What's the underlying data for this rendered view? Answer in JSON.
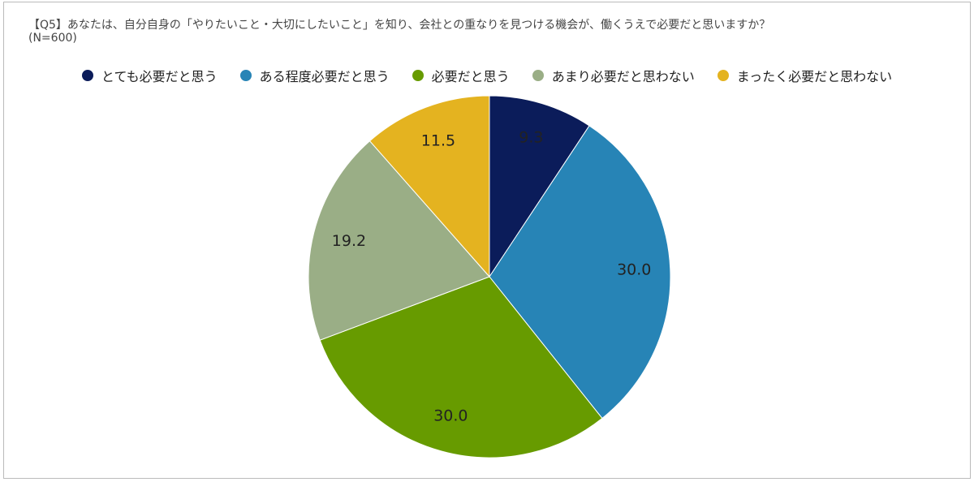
{
  "chart_data": {
    "type": "pie",
    "title": "【Q5】あなたは、自分自身の「やりたいこと・大切にしたいこと」を知り、会社との重なりを見つける機会が、働くうえで必要だと思いますか？",
    "subtitle": "(N=600)",
    "categories": [
      "とても必要だと思う",
      "ある程度必要だと思う",
      "必要だと思う",
      "あまり必要だと思わない",
      "まったく必要だと思わない"
    ],
    "values": [
      9.3,
      30.0,
      30.0,
      19.2,
      11.5
    ],
    "value_labels": [
      "9.3",
      "30.0",
      "30.0",
      "19.2",
      "11.5"
    ],
    "colors": [
      "#0b1c5a",
      "#2784b6",
      "#679b00",
      "#9aae86",
      "#e4b320"
    ],
    "legend": "top"
  }
}
